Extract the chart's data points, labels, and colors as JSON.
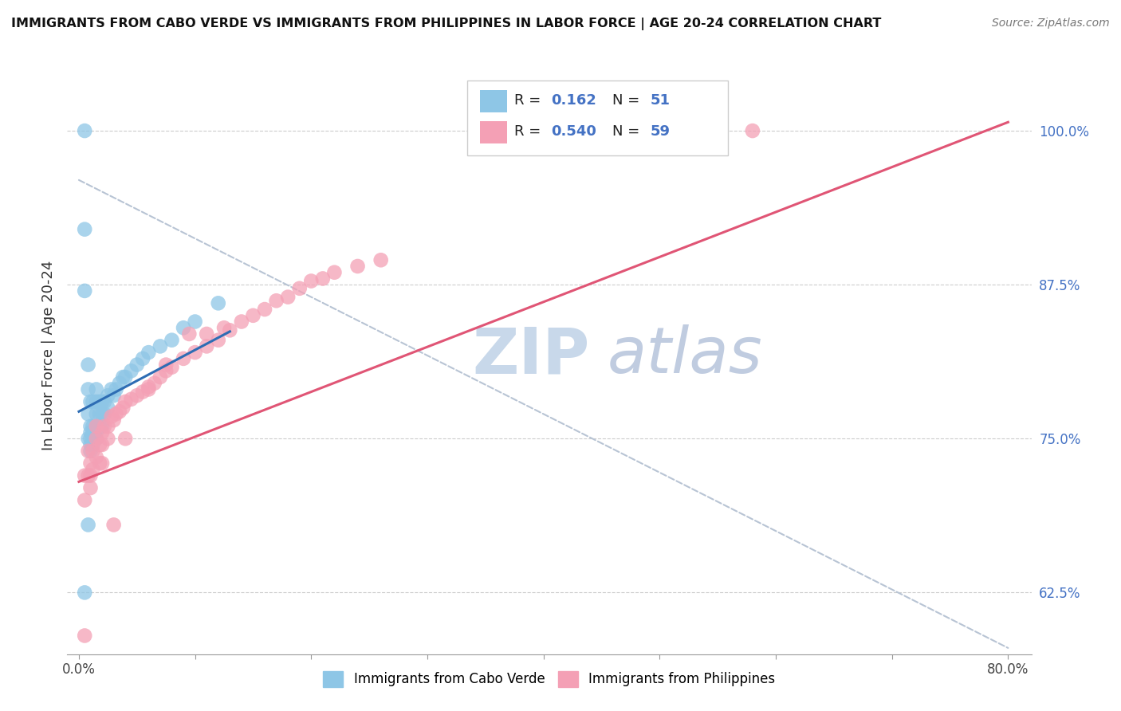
{
  "title": "IMMIGRANTS FROM CABO VERDE VS IMMIGRANTS FROM PHILIPPINES IN LABOR FORCE | AGE 20-24 CORRELATION CHART",
  "source": "Source: ZipAtlas.com",
  "ylabel": "In Labor Force | Age 20-24",
  "x_tick_vals": [
    0.0,
    0.1,
    0.2,
    0.3,
    0.4,
    0.5,
    0.6,
    0.7,
    0.8
  ],
  "x_tick_labels": [
    "0.0%",
    "",
    "",
    "",
    "",
    "",
    "",
    "",
    "80.0%"
  ],
  "y_tick_vals": [
    0.625,
    0.75,
    0.875,
    1.0
  ],
  "y_tick_labels": [
    "62.5%",
    "75.0%",
    "87.5%",
    "100.0%"
  ],
  "xlim": [
    -0.01,
    0.82
  ],
  "ylim": [
    0.575,
    1.06
  ],
  "cabo_R": 0.162,
  "cabo_N": 51,
  "phil_R": 0.54,
  "phil_N": 59,
  "cabo_color": "#8ec6e6",
  "phil_color": "#f4a0b5",
  "cabo_line_color": "#2e6db4",
  "phil_line_color": "#e05575",
  "dashed_line_color": "#b8c4d4",
  "watermark_zip": "ZIP",
  "watermark_atlas": "atlas",
  "watermark_color_zip": "#c8d8ea",
  "watermark_color_atlas": "#c0cce0",
  "cabo_scatter_x": [
    0.005,
    0.005,
    0.005,
    0.008,
    0.008,
    0.008,
    0.008,
    0.01,
    0.01,
    0.01,
    0.01,
    0.01,
    0.01,
    0.012,
    0.012,
    0.012,
    0.012,
    0.012,
    0.015,
    0.015,
    0.015,
    0.015,
    0.015,
    0.015,
    0.018,
    0.018,
    0.018,
    0.02,
    0.02,
    0.02,
    0.022,
    0.022,
    0.025,
    0.025,
    0.028,
    0.03,
    0.032,
    0.035,
    0.038,
    0.04,
    0.045,
    0.05,
    0.055,
    0.06,
    0.07,
    0.08,
    0.09,
    0.1,
    0.005,
    0.008,
    0.12
  ],
  "cabo_scatter_y": [
    1.0,
    0.92,
    0.87,
    0.81,
    0.79,
    0.77,
    0.75,
    0.78,
    0.76,
    0.755,
    0.75,
    0.745,
    0.74,
    0.78,
    0.76,
    0.755,
    0.75,
    0.745,
    0.79,
    0.78,
    0.77,
    0.76,
    0.755,
    0.75,
    0.78,
    0.77,
    0.76,
    0.78,
    0.77,
    0.76,
    0.78,
    0.77,
    0.785,
    0.775,
    0.79,
    0.785,
    0.79,
    0.795,
    0.8,
    0.8,
    0.805,
    0.81,
    0.815,
    0.82,
    0.825,
    0.83,
    0.84,
    0.845,
    0.625,
    0.68,
    0.86
  ],
  "phil_scatter_x": [
    0.005,
    0.005,
    0.008,
    0.008,
    0.01,
    0.01,
    0.01,
    0.012,
    0.012,
    0.015,
    0.015,
    0.018,
    0.018,
    0.02,
    0.02,
    0.022,
    0.025,
    0.025,
    0.028,
    0.03,
    0.032,
    0.035,
    0.038,
    0.04,
    0.045,
    0.05,
    0.055,
    0.06,
    0.065,
    0.07,
    0.075,
    0.08,
    0.09,
    0.1,
    0.11,
    0.12,
    0.13,
    0.14,
    0.15,
    0.16,
    0.17,
    0.18,
    0.19,
    0.2,
    0.21,
    0.22,
    0.24,
    0.26,
    0.005,
    0.03,
    0.015,
    0.02,
    0.04,
    0.06,
    0.075,
    0.095,
    0.11,
    0.125,
    0.58
  ],
  "phil_scatter_y": [
    0.72,
    0.7,
    0.74,
    0.72,
    0.73,
    0.72,
    0.71,
    0.74,
    0.725,
    0.75,
    0.735,
    0.745,
    0.73,
    0.755,
    0.745,
    0.76,
    0.76,
    0.75,
    0.768,
    0.765,
    0.77,
    0.772,
    0.775,
    0.78,
    0.782,
    0.785,
    0.788,
    0.792,
    0.795,
    0.8,
    0.805,
    0.808,
    0.815,
    0.82,
    0.825,
    0.83,
    0.838,
    0.845,
    0.85,
    0.855,
    0.862,
    0.865,
    0.872,
    0.878,
    0.88,
    0.885,
    0.89,
    0.895,
    0.59,
    0.68,
    0.76,
    0.73,
    0.75,
    0.79,
    0.81,
    0.835,
    0.835,
    0.84,
    1.0
  ]
}
